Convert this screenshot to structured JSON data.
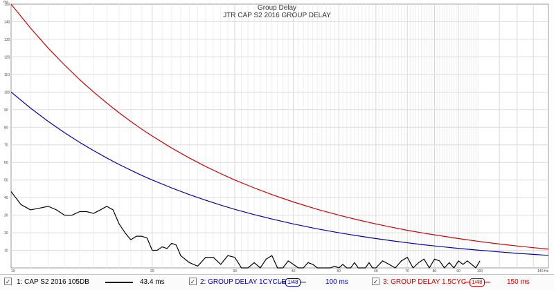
{
  "chart_data": {
    "type": "line",
    "title": "Group Delay",
    "subtitle": "JTR CAP S2 2016 GROUP DELAY",
    "y_unit": "ms",
    "x_unit": "Hz",
    "xscale": "log",
    "xlim": [
      10,
      140
    ],
    "ylim": [
      0,
      150
    ],
    "grid": true,
    "x_ticks": [
      {
        "value": 10,
        "label": "10"
      },
      {
        "value": 20,
        "label": "20"
      },
      {
        "value": 30,
        "label": "30"
      },
      {
        "value": 40,
        "label": "40"
      },
      {
        "value": 50,
        "label": "50"
      },
      {
        "value": 60,
        "label": "60"
      },
      {
        "value": 70,
        "label": "70"
      },
      {
        "value": 80,
        "label": "80"
      },
      {
        "value": 90,
        "label": "90"
      },
      {
        "value": 100,
        "label": "100"
      },
      {
        "value": 140,
        "label": "140 Hz"
      }
    ],
    "y_ticks": [
      {
        "value": 10,
        "label": "10"
      },
      {
        "value": 20,
        "label": "20"
      },
      {
        "value": 30,
        "label": "30"
      },
      {
        "value": 40,
        "label": "40"
      },
      {
        "value": 50,
        "label": "50"
      },
      {
        "value": 60,
        "label": "60"
      },
      {
        "value": 70,
        "label": "70"
      },
      {
        "value": 80,
        "label": "80"
      },
      {
        "value": 90,
        "label": "90"
      },
      {
        "value": 100,
        "label": "100"
      },
      {
        "value": 110,
        "label": "110"
      },
      {
        "value": 120,
        "label": "120"
      },
      {
        "value": 130,
        "label": "130"
      },
      {
        "value": 140,
        "label": "140"
      },
      {
        "value": 150,
        "label": "150"
      }
    ],
    "series": [
      {
        "name": "1: CAP S2 2016 105DB",
        "color": "#000000",
        "legend_value": "43.4 ms",
        "checked": true,
        "x": [
          10,
          10.5,
          11,
          11.5,
          12,
          12.5,
          13,
          13.5,
          14,
          14.5,
          15,
          15.5,
          16,
          16.5,
          17,
          17.5,
          18,
          18.5,
          19,
          19.5,
          20,
          20.5,
          21,
          21.5,
          22,
          22.5,
          23,
          24,
          25,
          26,
          27,
          28,
          29,
          30,
          31,
          32,
          33,
          34,
          35,
          36,
          37,
          38,
          39,
          40,
          41,
          42,
          43,
          44,
          45,
          46,
          47,
          48,
          49,
          50,
          51,
          52,
          53,
          54,
          55,
          56,
          57,
          58,
          59,
          60,
          62,
          64,
          66,
          68,
          70,
          72,
          74,
          76,
          78,
          80,
          82,
          84,
          86,
          88,
          90,
          92,
          94,
          96,
          98,
          100
        ],
        "y": [
          43.4,
          36,
          33,
          34,
          35,
          33,
          30,
          30,
          32,
          32,
          31,
          33,
          35,
          33,
          25,
          20,
          16,
          18,
          18,
          17,
          10,
          10,
          12,
          11,
          14,
          13,
          7,
          3,
          1,
          6,
          6,
          2,
          7,
          6,
          0,
          0,
          3,
          0,
          5,
          7,
          0,
          0,
          4,
          2,
          0,
          0,
          3,
          2,
          0,
          0,
          0,
          0,
          1,
          0,
          2,
          0,
          0,
          3,
          0,
          0,
          0,
          3,
          0,
          0,
          4,
          2,
          0,
          4,
          6,
          0,
          3,
          5,
          0,
          5,
          4,
          0,
          3,
          0,
          4,
          2,
          4,
          2,
          0,
          4
        ]
      },
      {
        "name": "2: GROUP DELAY 1CYCLE",
        "color": "#0000aa",
        "legend_value": "100 ms",
        "smoothing": "1/48",
        "checked": true,
        "formula": "1000/f",
        "x": [
          10,
          11,
          12,
          13,
          14,
          15,
          16,
          17,
          18,
          19,
          20,
          22,
          24,
          26,
          28,
          30,
          33,
          36,
          40,
          45,
          50,
          55,
          60,
          65,
          70,
          75,
          80,
          90,
          100,
          110,
          120,
          130,
          140
        ],
        "y": [
          100,
          90.9,
          83.3,
          76.9,
          71.4,
          66.7,
          62.5,
          58.8,
          55.6,
          52.6,
          50,
          45.5,
          41.7,
          38.5,
          35.7,
          33.3,
          30.3,
          27.8,
          25,
          22.2,
          20,
          18.2,
          16.7,
          15.4,
          14.3,
          13.3,
          12.5,
          11.1,
          10,
          9.1,
          8.3,
          7.7,
          7.1
        ]
      },
      {
        "name": "3: GROUP DELAY 1.5CYC",
        "color": "#cc0000",
        "legend_value": "150 ms",
        "smoothing": "1/48",
        "checked": true,
        "formula": "1500/f",
        "x": [
          10,
          11,
          12,
          13,
          14,
          15,
          16,
          17,
          18,
          19,
          20,
          22,
          24,
          26,
          28,
          30,
          33,
          36,
          40,
          45,
          50,
          55,
          60,
          65,
          70,
          75,
          80,
          90,
          100,
          110,
          120,
          130,
          140
        ],
        "y": [
          150,
          136.4,
          125,
          115.4,
          107.1,
          100,
          93.8,
          88.2,
          83.3,
          78.9,
          75,
          68.2,
          62.5,
          57.7,
          53.6,
          50,
          45.5,
          41.7,
          37.5,
          33.3,
          30,
          27.3,
          25,
          23.1,
          21.4,
          20,
          18.8,
          16.7,
          15,
          13.6,
          12.5,
          11.5,
          10.7
        ]
      }
    ]
  }
}
